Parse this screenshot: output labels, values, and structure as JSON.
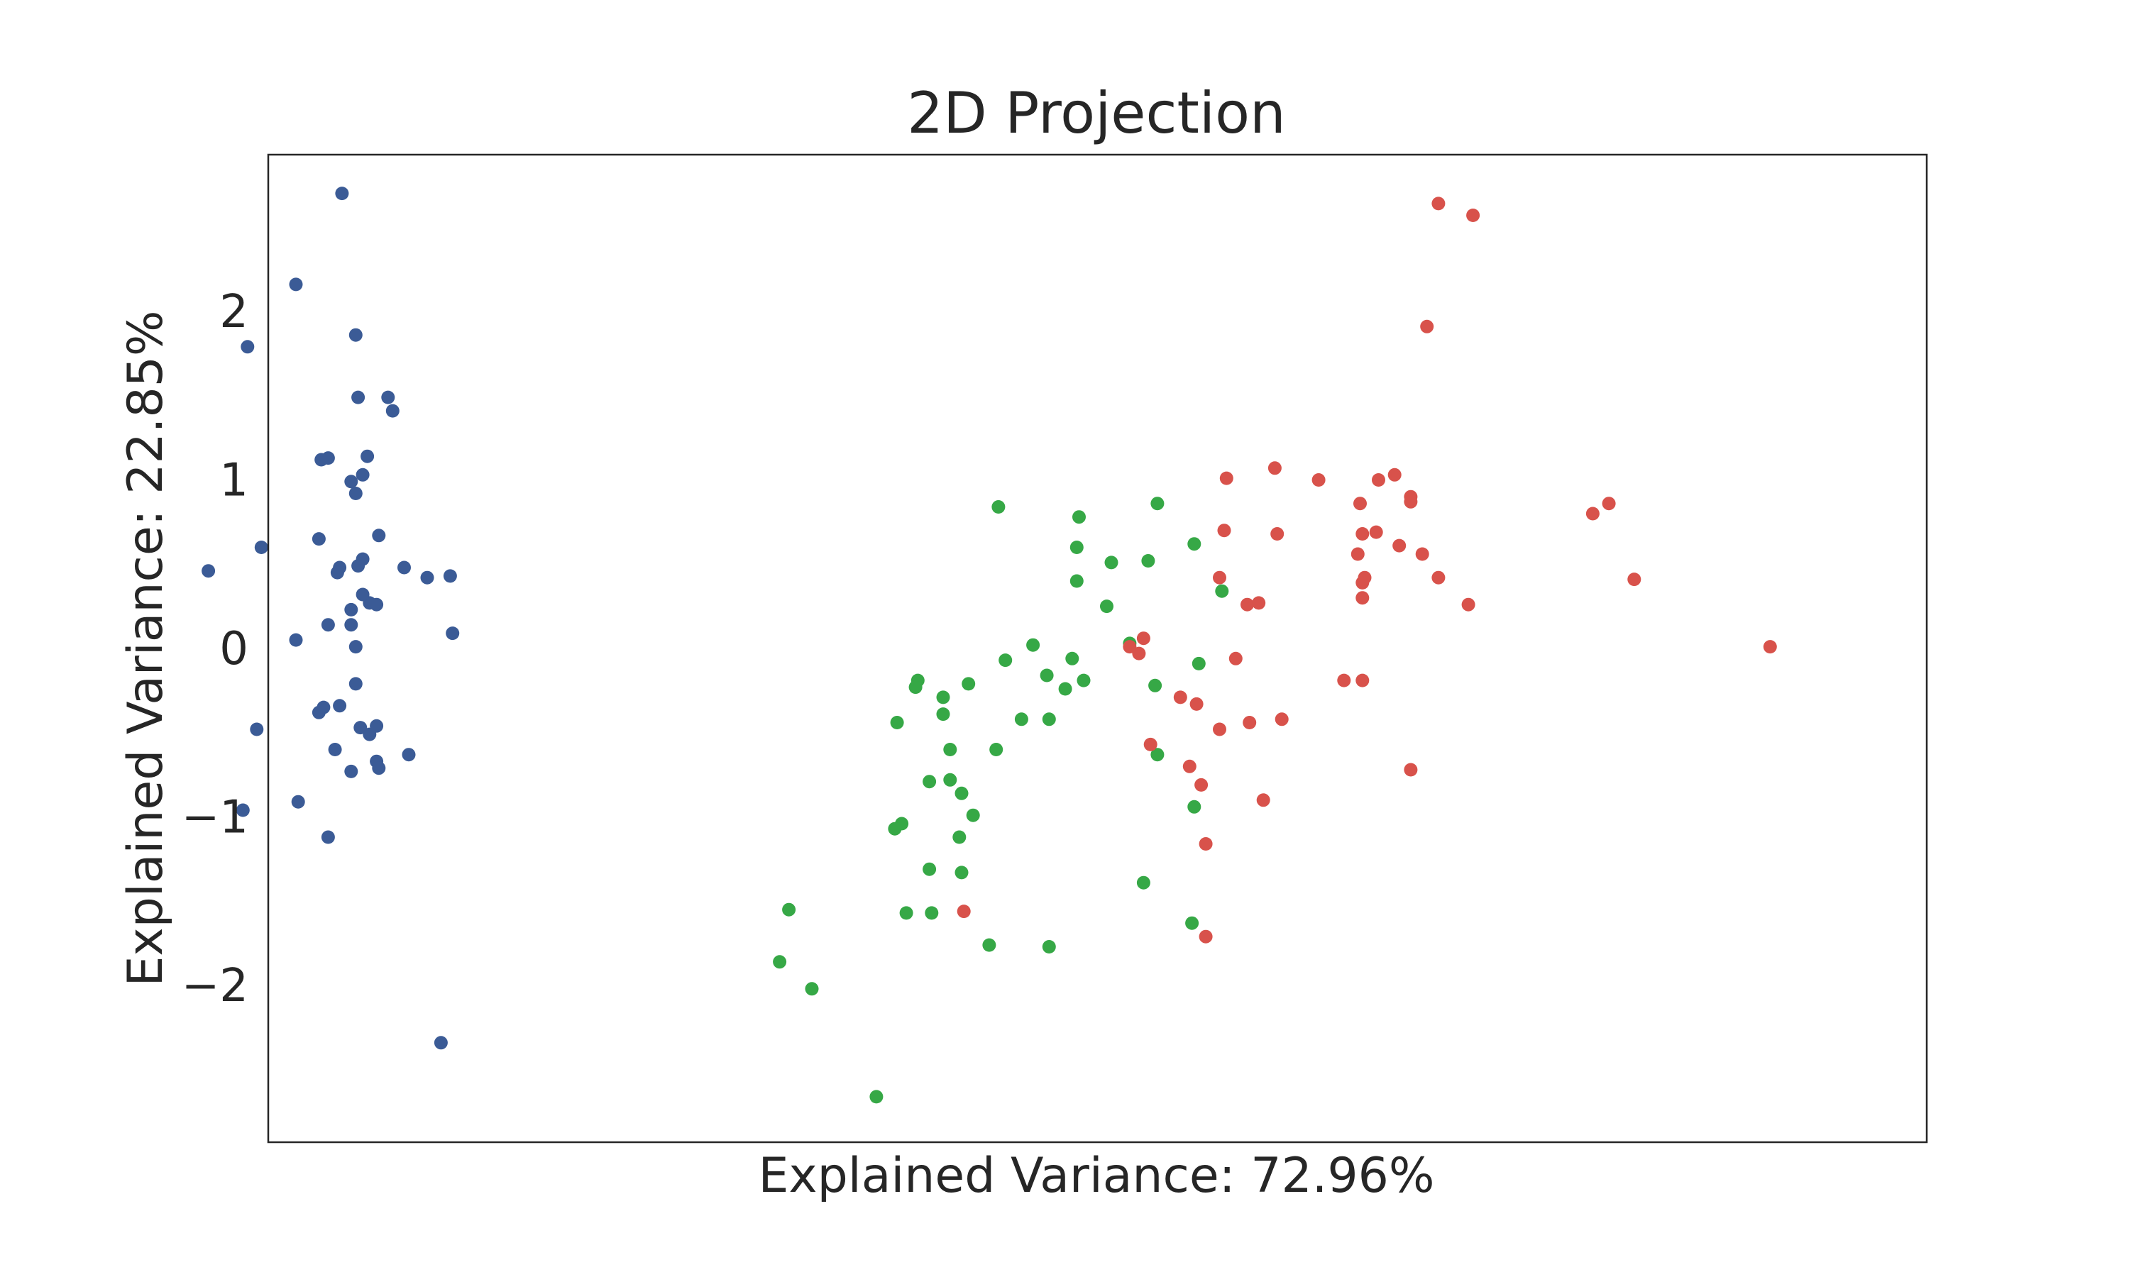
{
  "chart_data": {
    "type": "scatter",
    "title": "2D Projection",
    "xlabel": "Explained Variance: 72.96%",
    "ylabel": "Explained Variance: 22.85%",
    "x_ticks_shown": false,
    "yticks": [
      2,
      1,
      0,
      -1,
      -2
    ],
    "ytick_labels": [
      "2",
      "1",
      "0",
      "−1",
      "−2"
    ],
    "xlim": [
      -3.0,
      4.2
    ],
    "ylim": [
      -2.93,
      2.93
    ],
    "grid": false,
    "legend": "none",
    "series": [
      {
        "color": "#3b5b96",
        "points": [
          [
            -2.68,
            2.7
          ],
          [
            -2.88,
            2.16
          ],
          [
            -3.09,
            1.79
          ],
          [
            -2.62,
            1.86
          ],
          [
            -2.46,
            1.41
          ],
          [
            -2.61,
            1.49
          ],
          [
            -2.48,
            1.49
          ],
          [
            -2.57,
            1.14
          ],
          [
            -2.74,
            1.13
          ],
          [
            -2.77,
            1.12
          ],
          [
            -2.59,
            1.03
          ],
          [
            -2.64,
            0.99
          ],
          [
            -2.62,
            0.92
          ],
          [
            -3.26,
            0.46
          ],
          [
            -3.03,
            0.6
          ],
          [
            -2.78,
            0.65
          ],
          [
            -2.69,
            0.48
          ],
          [
            -2.7,
            0.45
          ],
          [
            -2.61,
            0.49
          ],
          [
            -2.59,
            0.53
          ],
          [
            -2.52,
            0.67
          ],
          [
            -2.41,
            0.48
          ],
          [
            -2.31,
            0.42
          ],
          [
            -2.21,
            0.43
          ],
          [
            -2.64,
            0.23
          ],
          [
            -2.56,
            0.27
          ],
          [
            -2.59,
            0.32
          ],
          [
            -2.53,
            0.26
          ],
          [
            -2.64,
            0.14
          ],
          [
            -2.74,
            0.14
          ],
          [
            -2.88,
            0.05
          ],
          [
            -2.62,
            0.01
          ],
          [
            -2.2,
            0.09
          ],
          [
            -2.62,
            -0.21
          ],
          [
            -2.69,
            -0.34
          ],
          [
            -2.76,
            -0.35
          ],
          [
            -2.78,
            -0.38
          ],
          [
            -3.05,
            -0.48
          ],
          [
            -2.6,
            -0.47
          ],
          [
            -2.56,
            -0.51
          ],
          [
            -2.53,
            -0.46
          ],
          [
            -2.71,
            -0.6
          ],
          [
            -2.53,
            -0.67
          ],
          [
            -2.52,
            -0.71
          ],
          [
            -2.64,
            -0.73
          ],
          [
            -2.39,
            -0.63
          ],
          [
            -3.11,
            -0.96
          ],
          [
            -2.87,
            -0.91
          ],
          [
            -2.74,
            -1.12
          ],
          [
            -2.25,
            -2.34
          ]
        ]
      },
      {
        "color": "#36a846",
        "points": [
          [
            0.17,
            0.84
          ],
          [
            0.52,
            0.78
          ],
          [
            0.51,
            0.6
          ],
          [
            0.51,
            0.4
          ],
          [
            0.66,
            0.51
          ],
          [
            0.82,
            0.52
          ],
          [
            0.86,
            0.86
          ],
          [
            1.02,
            0.62
          ],
          [
            1.14,
            0.34
          ],
          [
            0.64,
            0.25
          ],
          [
            0.74,
            0.03
          ],
          [
            0.32,
            0.02
          ],
          [
            0.49,
            -0.06
          ],
          [
            0.2,
            -0.07
          ],
          [
            0.38,
            -0.16
          ],
          [
            0.54,
            -0.19
          ],
          [
            0.46,
            -0.24
          ],
          [
            0.04,
            -0.21
          ],
          [
            -0.18,
            -0.19
          ],
          [
            -0.19,
            -0.23
          ],
          [
            -0.07,
            -0.29
          ],
          [
            -0.07,
            -0.39
          ],
          [
            -0.04,
            -0.6
          ],
          [
            0.16,
            -0.6
          ],
          [
            0.27,
            -0.42
          ],
          [
            0.39,
            -0.42
          ],
          [
            -0.27,
            -0.44
          ],
          [
            0.85,
            -0.22
          ],
          [
            1.04,
            -0.09
          ],
          [
            0.86,
            -0.63
          ],
          [
            -0.13,
            -0.79
          ],
          [
            -0.04,
            -0.78
          ],
          [
            0.01,
            -0.86
          ],
          [
            0.06,
            -0.99
          ],
          [
            -0.25,
            -1.04
          ],
          [
            -0.28,
            -1.07
          ],
          [
            0.0,
            -1.12
          ],
          [
            -0.13,
            -1.31
          ],
          [
            0.01,
            -1.33
          ],
          [
            0.8,
            -1.39
          ],
          [
            1.02,
            -0.94
          ],
          [
            -0.23,
            -1.57
          ],
          [
            -0.12,
            -1.57
          ],
          [
            -0.74,
            -1.55
          ],
          [
            -0.78,
            -1.86
          ],
          [
            -0.64,
            -2.02
          ],
          [
            0.13,
            -1.76
          ],
          [
            0.39,
            -1.77
          ],
          [
            1.01,
            -1.63
          ],
          [
            -0.36,
            -2.66
          ]
        ]
      },
      {
        "color": "#d8524b",
        "points": [
          [
            2.08,
            2.64
          ],
          [
            2.23,
            2.57
          ],
          [
            2.03,
            1.91
          ],
          [
            1.37,
            1.07
          ],
          [
            1.16,
            1.01
          ],
          [
            1.56,
            1.0
          ],
          [
            1.82,
            1.0
          ],
          [
            1.89,
            1.03
          ],
          [
            1.96,
            0.9
          ],
          [
            1.96,
            0.87
          ],
          [
            1.74,
            0.86
          ],
          [
            2.82,
            0.86
          ],
          [
            2.75,
            0.8
          ],
          [
            1.75,
            0.68
          ],
          [
            1.81,
            0.69
          ],
          [
            1.15,
            0.7
          ],
          [
            1.38,
            0.68
          ],
          [
            1.73,
            0.56
          ],
          [
            1.91,
            0.61
          ],
          [
            2.01,
            0.56
          ],
          [
            2.08,
            0.42
          ],
          [
            2.93,
            0.41
          ],
          [
            1.75,
            0.39
          ],
          [
            1.76,
            0.42
          ],
          [
            1.13,
            0.42
          ],
          [
            1.75,
            0.3
          ],
          [
            1.25,
            0.26
          ],
          [
            1.3,
            0.27
          ],
          [
            2.21,
            0.26
          ],
          [
            3.52,
            0.01
          ],
          [
            0.74,
            0.01
          ],
          [
            0.8,
            0.06
          ],
          [
            0.78,
            -0.03
          ],
          [
            1.2,
            -0.06
          ],
          [
            1.67,
            -0.19
          ],
          [
            1.75,
            -0.19
          ],
          [
            0.96,
            -0.29
          ],
          [
            1.03,
            -0.33
          ],
          [
            1.13,
            -0.48
          ],
          [
            1.26,
            -0.44
          ],
          [
            1.4,
            -0.42
          ],
          [
            0.83,
            -0.57
          ],
          [
            1.0,
            -0.7
          ],
          [
            1.05,
            -0.81
          ],
          [
            1.32,
            -0.9
          ],
          [
            1.96,
            -0.72
          ],
          [
            1.07,
            -1.16
          ],
          [
            0.02,
            -1.56
          ],
          [
            1.07,
            -1.71
          ]
        ]
      }
    ]
  }
}
